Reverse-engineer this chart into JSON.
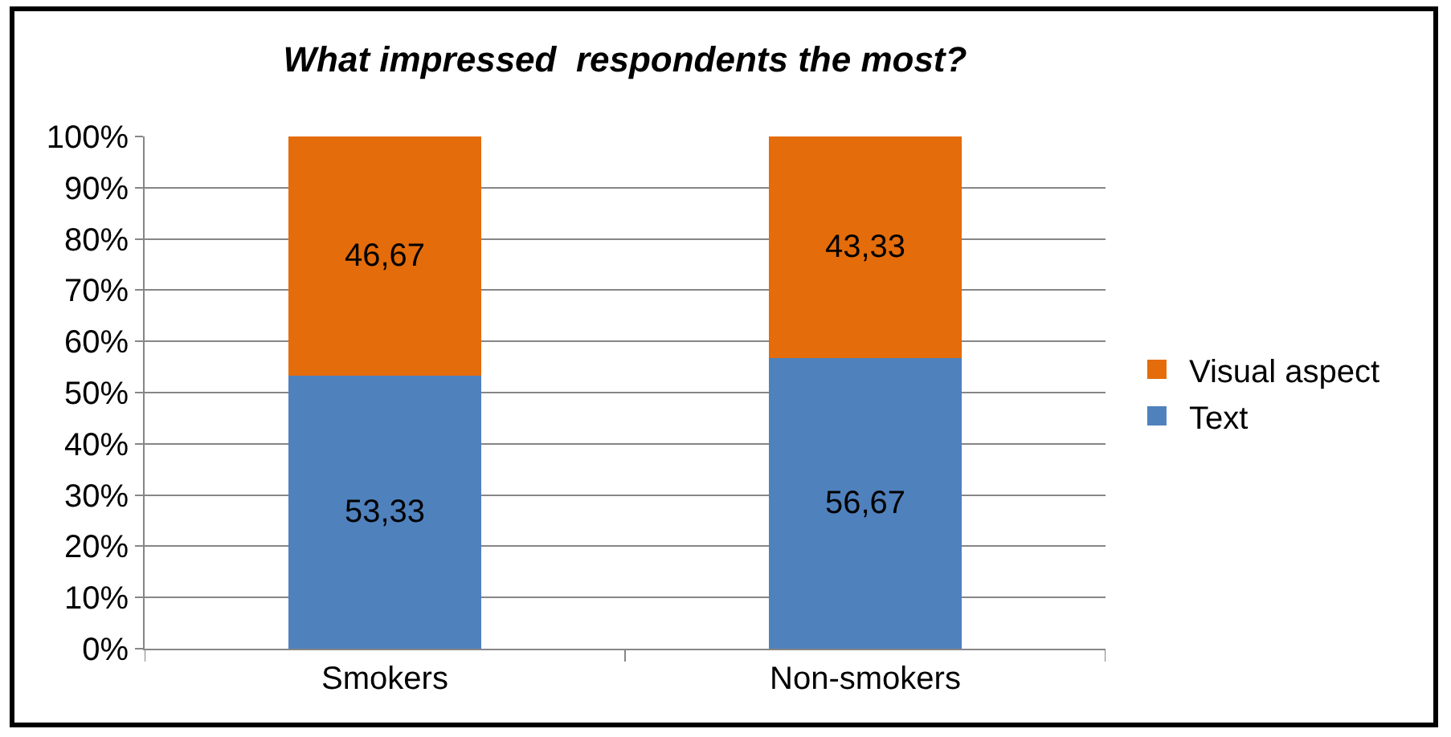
{
  "chart_data": {
    "type": "bar",
    "title": "What impressed  respondents the most?",
    "stacked": true,
    "categories": [
      "Smokers",
      "Non-smokers"
    ],
    "series": [
      {
        "name": "Text",
        "color": "#4f81bd",
        "values": [
          53.33,
          56.67
        ],
        "value_labels": [
          "53,33",
          "56,67"
        ]
      },
      {
        "name": "Visual aspect",
        "color": "#e46c0a",
        "values": [
          46.67,
          43.33
        ],
        "value_labels": [
          "46,67",
          "43,33"
        ]
      }
    ],
    "ylim": [
      0,
      100
    ],
    "yticks": [
      {
        "value": 0,
        "label": "0%"
      },
      {
        "value": 10,
        "label": "10%"
      },
      {
        "value": 20,
        "label": "20%"
      },
      {
        "value": 30,
        "label": "30%"
      },
      {
        "value": 40,
        "label": "40%"
      },
      {
        "value": 50,
        "label": "50%"
      },
      {
        "value": 60,
        "label": "60%"
      },
      {
        "value": 70,
        "label": "70%"
      },
      {
        "value": 80,
        "label": "80%"
      },
      {
        "value": 90,
        "label": "90%"
      },
      {
        "value": 100,
        "label": "100%"
      }
    ],
    "grid": "y",
    "legend": "right"
  }
}
